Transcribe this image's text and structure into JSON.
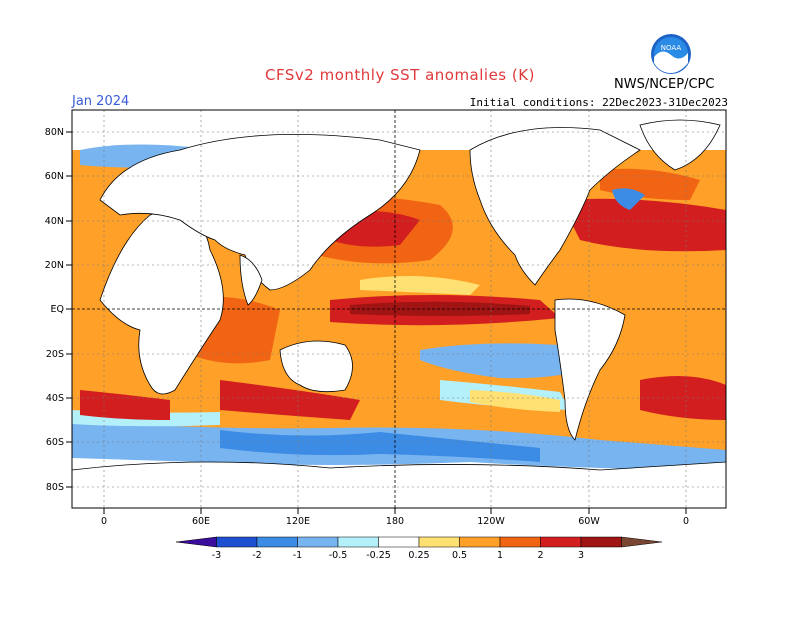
{
  "header": {
    "title": "CFSv2 monthly SST anomalies (K)",
    "valid_month": "Jan 2024",
    "initial_conditions": "Initial conditions: 22Dec2023-31Dec2023",
    "agency": "NWS/NCEP/CPC",
    "logo_text": "NOAA"
  },
  "axes": {
    "lat_labels": [
      "80N",
      "60N",
      "40N",
      "20N",
      "EQ",
      "20S",
      "40S",
      "60S",
      "80S"
    ],
    "lon_labels": [
      "0",
      "60E",
      "120E",
      "180",
      "120W",
      "60W",
      "0"
    ]
  },
  "colorbar": {
    "tick_labels": [
      "-3",
      "-2",
      "-1",
      "-0.5",
      "-0.25",
      "0.25",
      "0.5",
      "1",
      "2",
      "3"
    ],
    "colors": [
      "#3b0d9c",
      "#1e50d2",
      "#3c8ce6",
      "#78b4f0",
      "#b4f0fa",
      "#ffffff",
      "#ffe173",
      "#ffa028",
      "#f06414",
      "#d21e1e",
      "#a01414",
      "#7a4632"
    ]
  },
  "map": {
    "land_color": "#ffffff",
    "grid_lines": "dotted",
    "reference_lines": "dashed equator and 180 meridian"
  }
}
